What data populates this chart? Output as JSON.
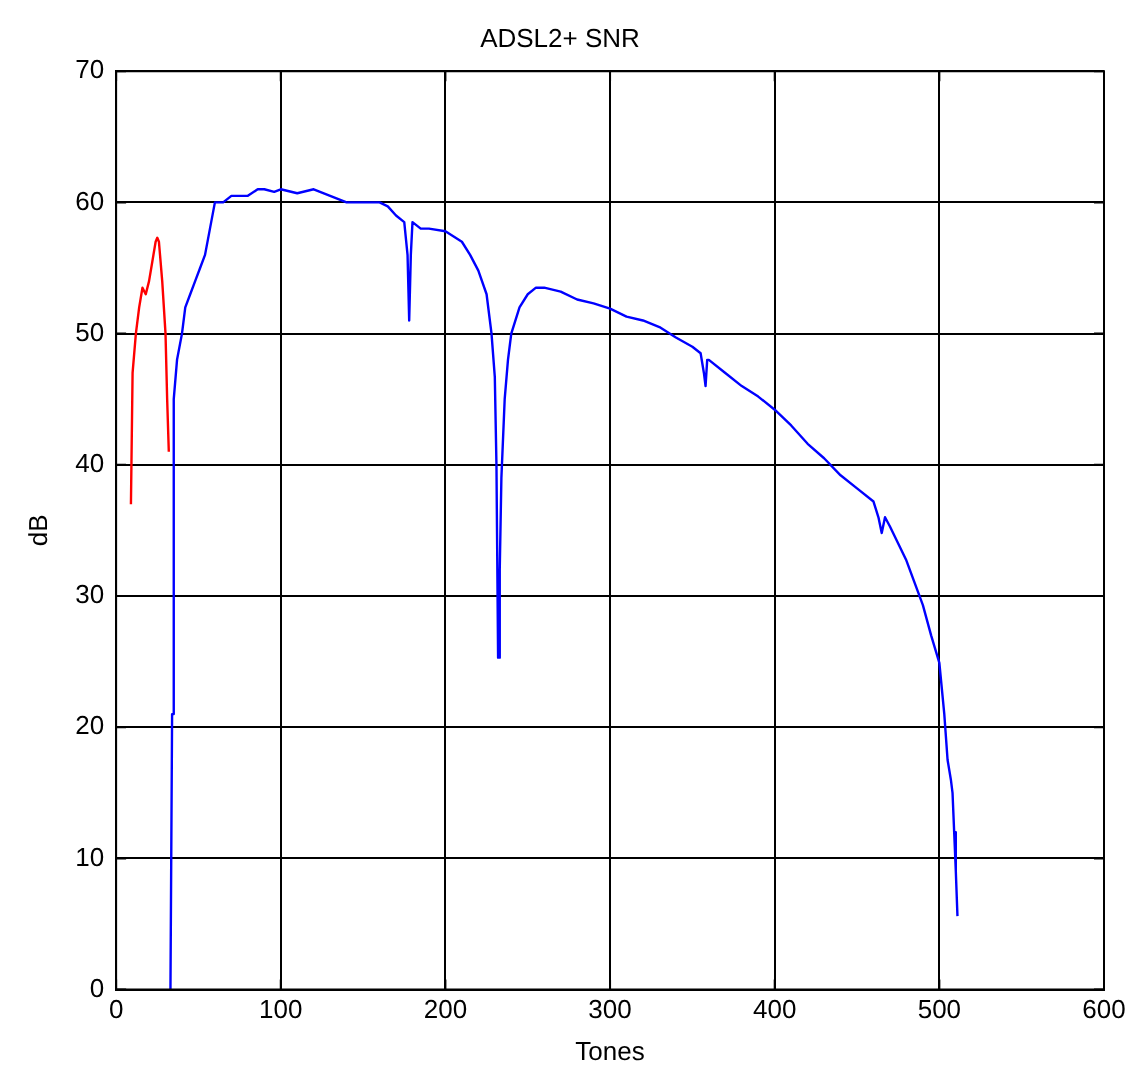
{
  "chart_data": {
    "type": "line",
    "title": "ADSL2+ SNR",
    "xlabel": "Tones",
    "ylabel": "dB",
    "xlim": [
      0,
      600
    ],
    "xticks": [
      0,
      100,
      200,
      300,
      400,
      500,
      600
    ],
    "ylim": [
      0,
      70
    ],
    "yticks": [
      0,
      10,
      20,
      30,
      40,
      50,
      60,
      70
    ],
    "grid": true,
    "legend": false,
    "marker": "none",
    "line_style": "solid",
    "series": [
      {
        "color": "#ff0000",
        "x": [
          9,
          10,
          12,
          14,
          16,
          18,
          20,
          22,
          24,
          25,
          26,
          28,
          30,
          31,
          32
        ],
        "values": [
          37,
          47,
          50,
          52,
          53.5,
          53,
          54,
          55.5,
          57,
          57.3,
          57,
          54,
          50,
          45,
          41
        ]
      },
      {
        "color": "#0000ff",
        "x": [
          33,
          34,
          35,
          37,
          40,
          42,
          45,
          48,
          51,
          54,
          57,
          60,
          65,
          70,
          80,
          86,
          90,
          96,
          100,
          110,
          120,
          130,
          140,
          150,
          160,
          165,
          170,
          175,
          177,
          178,
          179,
          180,
          185,
          190,
          200,
          210,
          215,
          220,
          225,
          228,
          230,
          231,
          232,
          233,
          234,
          236,
          238,
          240,
          245,
          250,
          255,
          260,
          270,
          280,
          290,
          300,
          310,
          320,
          330,
          340,
          350,
          355,
          357,
          358,
          359,
          360,
          370,
          380,
          390,
          400,
          410,
          420,
          430,
          440,
          450,
          460,
          463,
          465,
          467,
          470,
          475,
          480,
          485,
          490,
          495,
          500,
          503,
          505,
          507,
          508,
          509,
          510,
          511
        ],
        "values": [
          0,
          21,
          45,
          48,
          50,
          52,
          53,
          54,
          55,
          56,
          58,
          60,
          60,
          60.5,
          60.5,
          61,
          61,
          60.8,
          61,
          60.7,
          61,
          60.5,
          60,
          60,
          60,
          59.7,
          59,
          58.5,
          56,
          51,
          56,
          58.5,
          58,
          58,
          57.8,
          57,
          56,
          54.8,
          53,
          50,
          46.7,
          40,
          25.3,
          32,
          39,
          45,
          48,
          50,
          52,
          53,
          53.5,
          53.5,
          53.2,
          52.6,
          52.3,
          51.9,
          51.3,
          51,
          50.5,
          49.7,
          49,
          48.5,
          47,
          46,
          48,
          48,
          47,
          46,
          45.2,
          44.2,
          43,
          41.6,
          40.5,
          39.2,
          38.2,
          37.2,
          36,
          34.8,
          36,
          35.3,
          34,
          32.7,
          31,
          29.3,
          27,
          24.9,
          21,
          17.5,
          16,
          15,
          12,
          9,
          5.6
        ]
      }
    ]
  }
}
